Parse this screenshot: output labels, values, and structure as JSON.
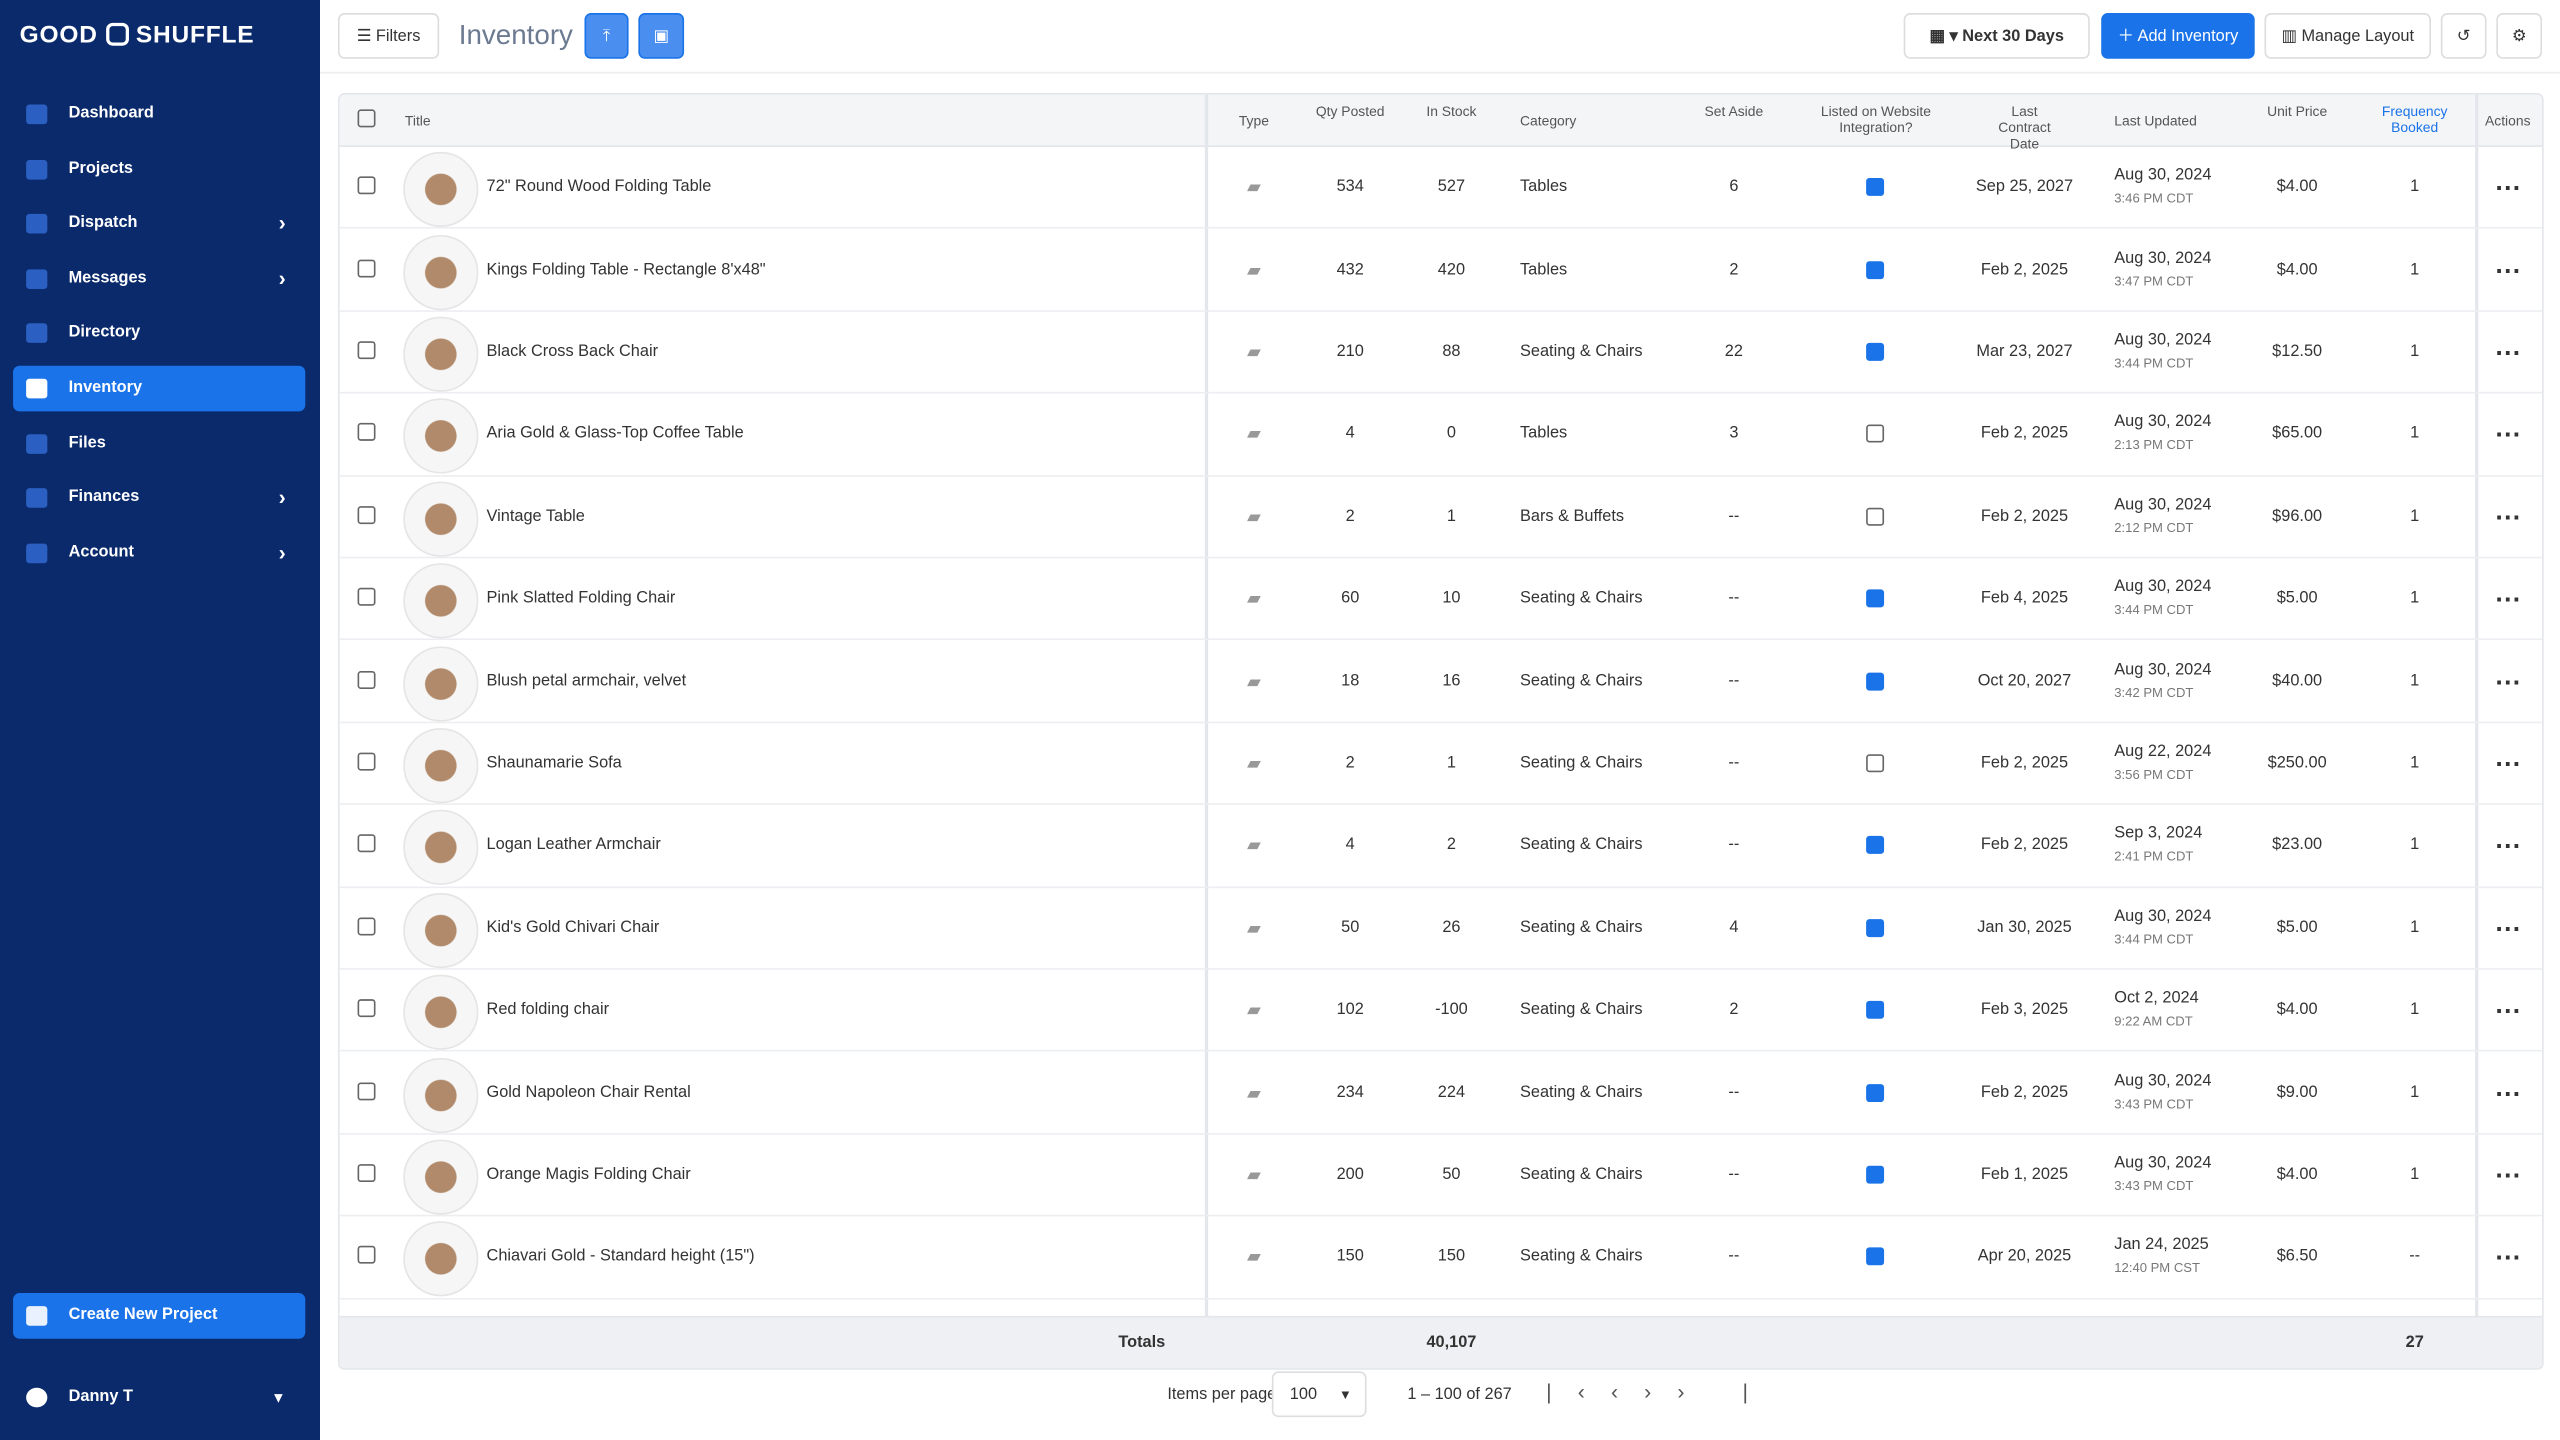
{
  "sidebar": {
    "brand": [
      "GOOD",
      "SHUFFLE"
    ],
    "nav": [
      {
        "label": "Dashboard",
        "submenu": false,
        "active": false
      },
      {
        "label": "Projects",
        "submenu": false,
        "active": false
      },
      {
        "label": "Dispatch",
        "submenu": true,
        "active": false
      },
      {
        "label": "Messages",
        "submenu": true,
        "active": false
      },
      {
        "label": "Directory",
        "submenu": false,
        "active": false
      },
      {
        "label": "Inventory",
        "submenu": false,
        "active": true
      },
      {
        "label": "Files",
        "submenu": false,
        "active": false
      },
      {
        "label": "Finances",
        "submenu": true,
        "active": false
      },
      {
        "label": "Account",
        "submenu": true,
        "active": false
      }
    ],
    "create": "Create New Project",
    "user": "Danny T"
  },
  "toolbar": {
    "filters": "Filters",
    "title": "Inventory",
    "range": "Next 30 Days",
    "add": "Add Inventory",
    "layout": "Manage Layout"
  },
  "table": {
    "columns": [
      "Title",
      "Type",
      "Qty Posted",
      "In Stock",
      "Category",
      "Set Aside",
      "Listed on Website Integration?",
      "Last Contract Date",
      "Last Updated",
      "Unit Price",
      "Frequency Booked",
      "Actions"
    ],
    "rows": [
      [
        "72\" Round Wood Folding Table",
        "534",
        "527",
        "Tables",
        "6",
        true,
        "Sep 25, 2027",
        "Aug 30, 2024",
        "3:46 PM CDT",
        "$4.00",
        "1"
      ],
      [
        "Kings Folding Table - Rectangle 8'x48\"",
        "432",
        "420",
        "Tables",
        "2",
        true,
        "Feb 2, 2025",
        "Aug 30, 2024",
        "3:47 PM CDT",
        "$4.00",
        "1"
      ],
      [
        "Black Cross Back Chair",
        "210",
        "88",
        "Seating & Chairs",
        "22",
        true,
        "Mar 23, 2027",
        "Aug 30, 2024",
        "3:44 PM CDT",
        "$12.50",
        "1"
      ],
      [
        "Aria Gold & Glass-Top Coffee Table",
        "4",
        "0",
        "Tables",
        "3",
        false,
        "Feb 2, 2025",
        "Aug 30, 2024",
        "2:13 PM CDT",
        "$65.00",
        "1"
      ],
      [
        "Vintage Table",
        "2",
        "1",
        "Bars & Buffets",
        "--",
        false,
        "Feb 2, 2025",
        "Aug 30, 2024",
        "2:12 PM CDT",
        "$96.00",
        "1"
      ],
      [
        "Pink Slatted Folding Chair",
        "60",
        "10",
        "Seating & Chairs",
        "--",
        true,
        "Feb 4, 2025",
        "Aug 30, 2024",
        "3:44 PM CDT",
        "$5.00",
        "1"
      ],
      [
        "Blush petal armchair, velvet",
        "18",
        "16",
        "Seating & Chairs",
        "--",
        true,
        "Oct 20, 2027",
        "Aug 30, 2024",
        "3:42 PM CDT",
        "$40.00",
        "1"
      ],
      [
        "Shaunamarie Sofa",
        "2",
        "1",
        "Seating & Chairs",
        "--",
        false,
        "Feb 2, 2025",
        "Aug 22, 2024",
        "3:56 PM CDT",
        "$250.00",
        "1"
      ],
      [
        "Logan Leather Armchair",
        "4",
        "2",
        "Seating & Chairs",
        "--",
        true,
        "Feb 2, 2025",
        "Sep 3, 2024",
        "2:41 PM CDT",
        "$23.00",
        "1"
      ],
      [
        "Kid's Gold Chivari Chair",
        "50",
        "26",
        "Seating & Chairs",
        "4",
        true,
        "Jan 30, 2025",
        "Aug 30, 2024",
        "3:44 PM CDT",
        "$5.00",
        "1"
      ],
      [
        "Red folding chair",
        "102",
        "-100",
        "Seating & Chairs",
        "2",
        true,
        "Feb 3, 2025",
        "Oct 2, 2024",
        "9:22 AM CDT",
        "$4.00",
        "1"
      ],
      [
        "Gold Napoleon Chair Rental",
        "234",
        "224",
        "Seating & Chairs",
        "--",
        true,
        "Feb 2, 2025",
        "Aug 30, 2024",
        "3:43 PM CDT",
        "$9.00",
        "1"
      ],
      [
        "Orange Magis Folding Chair",
        "200",
        "50",
        "Seating & Chairs",
        "--",
        true,
        "Feb 1, 2025",
        "Aug 30, 2024",
        "3:43 PM CDT",
        "$4.00",
        "1"
      ],
      [
        "Chiavari Gold - Standard height (15\")",
        "150",
        "150",
        "Seating & Chairs",
        "--",
        true,
        "Apr 20, 2025",
        "Jan 24, 2025",
        "12:40 PM CST",
        "$6.50",
        "--"
      ]
    ],
    "totals": {
      "label": "Totals",
      "stock": "40,107",
      "frequency": "27"
    }
  },
  "pager": {
    "label": "Items per page:",
    "size": "100",
    "range": "1 – 100 of 267"
  }
}
